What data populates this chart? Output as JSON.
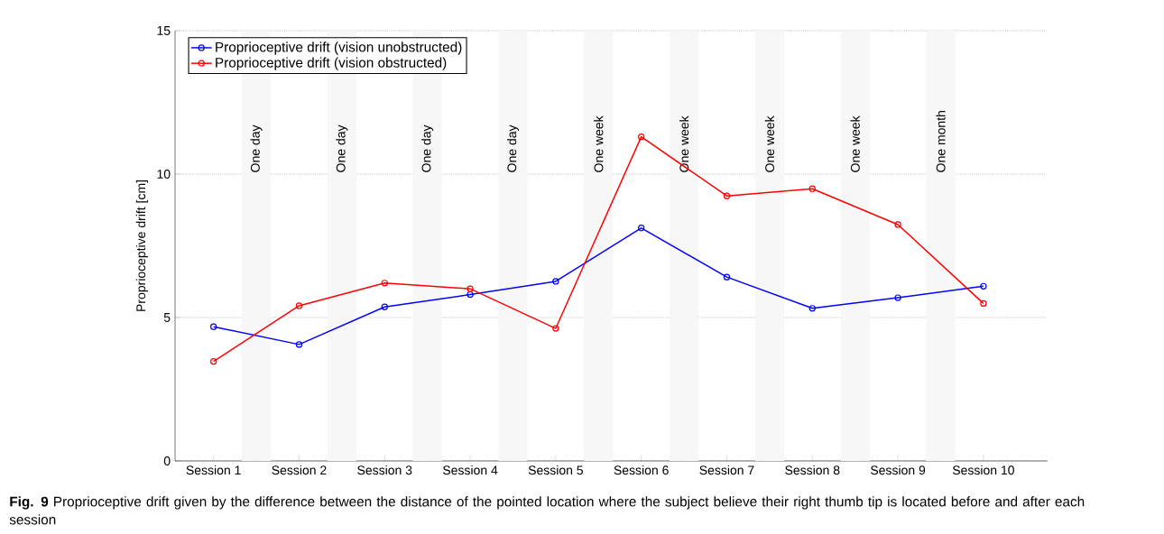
{
  "chart_data": {
    "type": "line",
    "ylabel": "Proprioceptive drift [cm]",
    "categories": [
      "Session 1",
      "Session 2",
      "Session 3",
      "Session 4",
      "Session 5",
      "Session 6",
      "Session 7",
      "Session 8",
      "Session 9",
      "Session 10"
    ],
    "ylim": [
      0,
      15
    ],
    "yticks": [
      0,
      5,
      10,
      15
    ],
    "series": [
      {
        "name": "Proprioceptive drift (vision unobstructed)",
        "color": "#0000ff",
        "values": [
          4.68,
          4.06,
          5.37,
          5.8,
          6.26,
          8.12,
          6.41,
          5.32,
          5.69,
          6.09
        ]
      },
      {
        "name": "Proprioceptive drift (vision obstructed)",
        "color": "#ff0000",
        "values": [
          3.47,
          5.41,
          6.2,
          6.0,
          4.62,
          11.3,
          9.24,
          9.49,
          8.24,
          5.49
        ]
      }
    ],
    "bands": [
      {
        "axis": "x",
        "from": "Session 1",
        "to": "Session 2",
        "label": "One day",
        "color": "#f7f7f7"
      },
      {
        "axis": "x",
        "from": "Session 2",
        "to": "Session 3",
        "label": "One day",
        "color": "#f7f7f7"
      },
      {
        "axis": "x",
        "from": "Session 3",
        "to": "Session 4",
        "label": "One day",
        "color": "#f7f7f7"
      },
      {
        "axis": "x",
        "from": "Session 4",
        "to": "Session 5",
        "label": "One day",
        "color": "#f7f7f7"
      },
      {
        "axis": "x",
        "from": "Session 5",
        "to": "Session 6",
        "label": "One week",
        "color": "#f7f7f7"
      },
      {
        "axis": "x",
        "from": "Session 6",
        "to": "Session 7",
        "label": "One week",
        "color": "#f7f7f7"
      },
      {
        "axis": "x",
        "from": "Session 7",
        "to": "Session 8",
        "label": "One week",
        "color": "#f7f7f7"
      },
      {
        "axis": "x",
        "from": "Session 8",
        "to": "Session 9",
        "label": "One week",
        "color": "#f7f7f7"
      },
      {
        "axis": "x",
        "from": "Session 9",
        "to": "Session 10",
        "label": "One month",
        "color": "#f7f7f7"
      }
    ],
    "grid": "y",
    "legend": "top left",
    "marker": "circle",
    "line_style": "solid",
    "annotations": [
      "**Fig. 9** Proprioceptive drift given by the difference between the distance of the pointed location where the subject believe their right thumb tip is located before and after each session"
    ]
  }
}
